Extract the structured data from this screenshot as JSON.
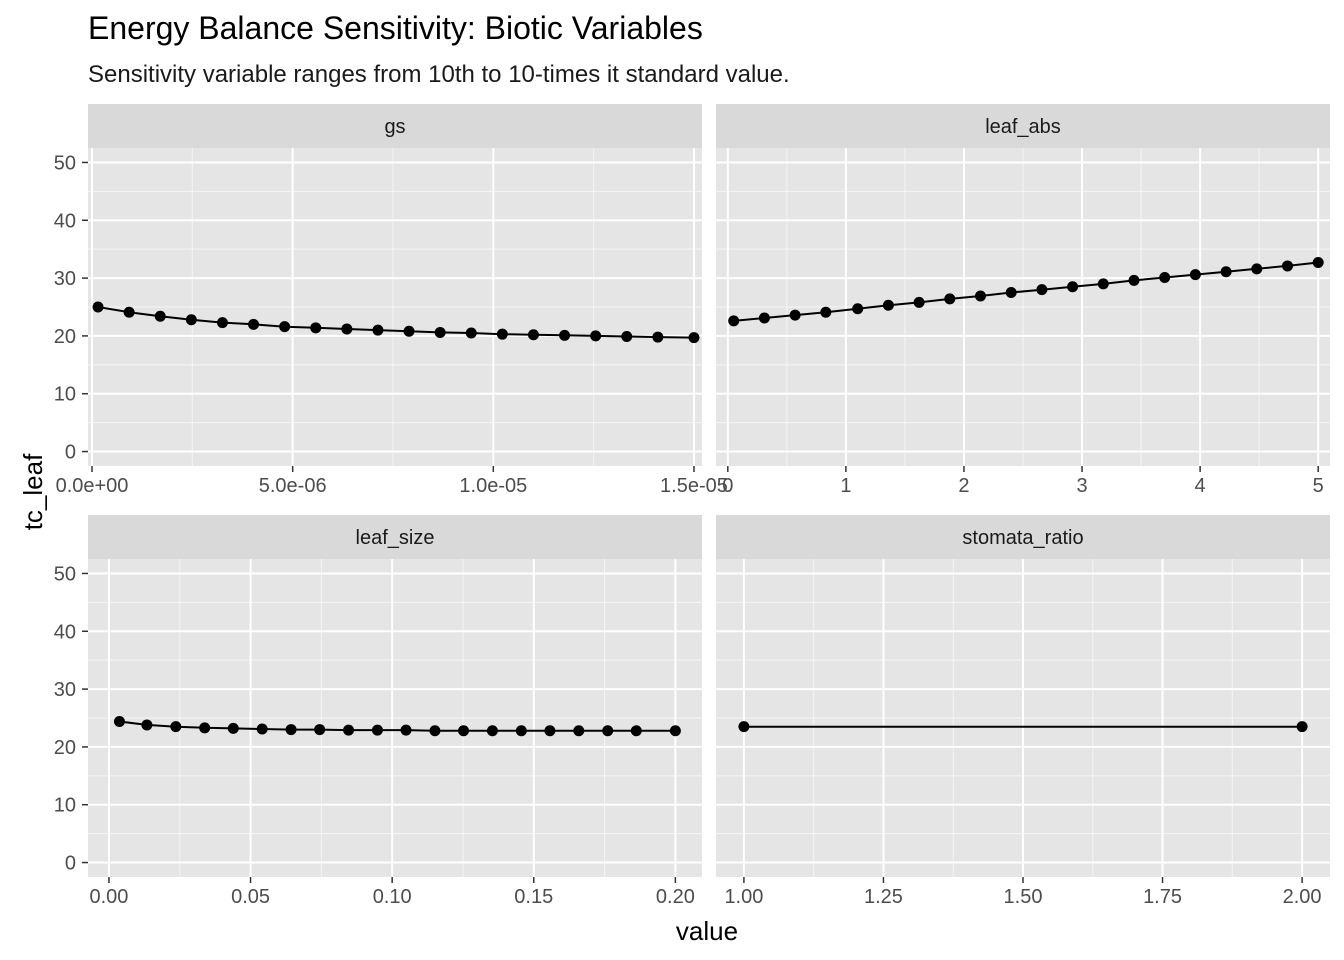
{
  "title": "Energy Balance Sensitivity: Biotic Variables",
  "subtitle": "Sensitivity variable ranges from 10th to 10-times it standard value.",
  "xlabel": "value",
  "ylabel": "tc_leaf",
  "colors": {
    "panel_bg": "#e5e5e5",
    "strip_bg": "#d9d9d9",
    "grid": "#ffffff",
    "series": "#000000"
  },
  "chart_data": [
    {
      "type": "line",
      "facet": "gs",
      "xlim": [
        -1e-07,
        1.52e-05
      ],
      "ylim": [
        -2.5,
        52.5
      ],
      "y_ticks": [
        0,
        10,
        20,
        30,
        40,
        50
      ],
      "y_tick_labels": [
        "0",
        "10",
        "20",
        "30",
        "40",
        "50"
      ],
      "x_ticks": [
        0,
        5e-06,
        1e-05,
        1.5e-05
      ],
      "x_tick_labels": [
        "0.0e+00",
        "5.0e-06",
        "1.0e-05",
        "1.5e-05"
      ],
      "x": [
        1.5e-07,
        9.25e-07,
        1.7e-06,
        2.475e-06,
        3.25e-06,
        4.025e-06,
        4.8e-06,
        5.575e-06,
        6.35e-06,
        7.125e-06,
        7.9e-06,
        8.675e-06,
        9.45e-06,
        1.0225e-05,
        1.1e-05,
        1.1775e-05,
        1.255e-05,
        1.3325e-05,
        1.41e-05,
        1.5e-05
      ],
      "y": [
        25.0,
        24.1,
        23.4,
        22.8,
        22.3,
        22.0,
        21.6,
        21.4,
        21.2,
        21.0,
        20.8,
        20.6,
        20.5,
        20.3,
        20.2,
        20.1,
        20.0,
        19.9,
        19.8,
        19.7
      ]
    },
    {
      "type": "line",
      "facet": "leaf_abs",
      "xlim": [
        -0.1,
        5.1
      ],
      "ylim": [
        -2.5,
        52.5
      ],
      "y_ticks": [
        0,
        10,
        20,
        30,
        40,
        50
      ],
      "y_tick_labels": [
        "0",
        "10",
        "20",
        "30",
        "40",
        "50"
      ],
      "x_ticks": [
        0,
        1,
        2,
        3,
        4,
        5
      ],
      "x_tick_labels": [
        "0",
        "1",
        "2",
        "3",
        "4",
        "5"
      ],
      "x": [
        0.05,
        0.31,
        0.57,
        0.83,
        1.1,
        1.36,
        1.62,
        1.88,
        2.14,
        2.4,
        2.66,
        2.92,
        3.18,
        3.44,
        3.7,
        3.96,
        4.22,
        4.48,
        4.74,
        5.0
      ],
      "y": [
        22.6,
        23.1,
        23.6,
        24.1,
        24.7,
        25.3,
        25.8,
        26.4,
        26.9,
        27.5,
        28.0,
        28.5,
        29.0,
        29.6,
        30.1,
        30.6,
        31.1,
        31.6,
        32.1,
        32.7
      ]
    },
    {
      "type": "line",
      "facet": "leaf_size",
      "xlim": [
        -0.0074,
        0.2094
      ],
      "ylim": [
        -2.5,
        52.5
      ],
      "y_ticks": [
        0,
        10,
        20,
        30,
        40,
        50
      ],
      "y_tick_labels": [
        "0",
        "10",
        "20",
        "30",
        "40",
        "50"
      ],
      "x_ticks": [
        0,
        0.05,
        0.1,
        0.15,
        0.2
      ],
      "x_tick_labels": [
        "0.00",
        "0.05",
        "0.10",
        "0.15",
        "0.20"
      ],
      "x": [
        0.0037,
        0.0134,
        0.0236,
        0.0338,
        0.0439,
        0.0541,
        0.0643,
        0.0744,
        0.0846,
        0.0948,
        0.1049,
        0.1151,
        0.1252,
        0.1354,
        0.1456,
        0.1557,
        0.1659,
        0.1761,
        0.1862,
        0.2
      ],
      "y": [
        24.4,
        23.8,
        23.5,
        23.3,
        23.2,
        23.1,
        23.0,
        23.0,
        22.9,
        22.9,
        22.9,
        22.8,
        22.8,
        22.8,
        22.8,
        22.8,
        22.8,
        22.8,
        22.8,
        22.8
      ]
    },
    {
      "type": "line",
      "facet": "stomata_ratio",
      "xlim": [
        0.95,
        2.05
      ],
      "ylim": [
        -2.5,
        52.5
      ],
      "y_ticks": [
        0,
        10,
        20,
        30,
        40,
        50
      ],
      "y_tick_labels": [
        "0",
        "10",
        "20",
        "30",
        "40",
        "50"
      ],
      "x_ticks": [
        1.0,
        1.25,
        1.5,
        1.75,
        2.0
      ],
      "x_tick_labels": [
        "1.00",
        "1.25",
        "1.50",
        "1.75",
        "2.00"
      ],
      "x": [
        1.0,
        2.0
      ],
      "y": [
        23.5,
        23.5
      ]
    }
  ]
}
